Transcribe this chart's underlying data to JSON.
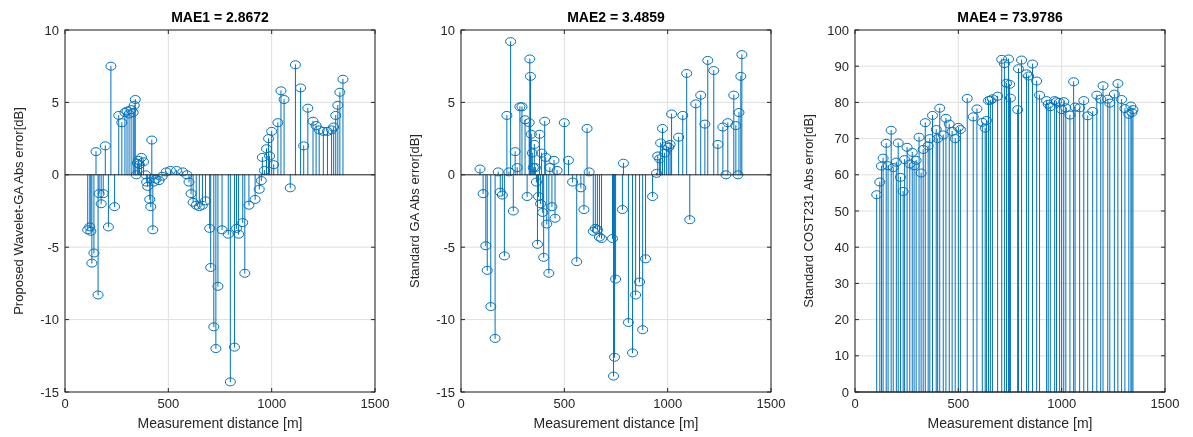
{
  "chart_data": [
    {
      "type": "lollipop",
      "title": "MAE1 = 2.8672",
      "xlabel": "Measurement distance [m]",
      "ylabel": "Proposed Wavelet-GA Abs error[dB]",
      "color": "#0072bd",
      "marker": "circle",
      "grid": true,
      "xlim": [
        0,
        1500
      ],
      "xticks": [
        0,
        500,
        1000,
        1500
      ],
      "ylim": [
        -15,
        10
      ],
      "yticks": [
        -15,
        -10,
        -5,
        0,
        5,
        10
      ],
      "x": [
        110,
        120,
        125,
        130,
        140,
        150,
        160,
        165,
        175,
        185,
        195,
        210,
        222,
        240,
        260,
        275,
        290,
        300,
        310,
        320,
        330,
        335,
        340,
        345,
        350,
        355,
        360,
        370,
        380,
        390,
        395,
        400,
        410,
        415,
        420,
        425,
        430,
        440,
        455,
        470,
        490,
        510,
        540,
        570,
        590,
        600,
        610,
        620,
        635,
        650,
        665,
        680,
        700,
        705,
        720,
        730,
        740,
        760,
        790,
        800,
        820,
        830,
        840,
        860,
        870,
        890,
        920,
        940,
        950,
        955,
        965,
        975,
        985,
        990,
        1000,
        1010,
        1030,
        1045,
        1060,
        1090,
        1115,
        1140,
        1155,
        1175,
        1200,
        1215,
        1230,
        1250,
        1270,
        1290,
        1300,
        1310,
        1320,
        1330,
        1345
      ],
      "values": [
        -3.8,
        -3.6,
        -3.9,
        -6.1,
        -5.4,
        1.6,
        -8.3,
        -1.3,
        -2.0,
        -1.3,
        2.0,
        -3.6,
        7.5,
        -2.2,
        4.1,
        3.6,
        4.3,
        4.4,
        4.2,
        4.5,
        4.3,
        4.8,
        5.2,
        0.0,
        0.8,
        1.0,
        0.7,
        1.2,
        0.9,
        0.0,
        -0.5,
        -0.8,
        -1.7,
        -2.2,
        2.4,
        -3.8,
        -0.5,
        -0.3,
        -0.4,
        -0.1,
        0.2,
        0.3,
        0.3,
        0.2,
        0.0,
        -0.5,
        -1.3,
        -1.9,
        -2.1,
        -2.2,
        -2.1,
        -1.8,
        -3.7,
        -6.4,
        -10.5,
        -12.0,
        -7.7,
        -3.8,
        -4.1,
        -14.3,
        -11.9,
        -3.7,
        -4.1,
        -3.3,
        -6.8,
        -2.1,
        -1.7,
        -1.0,
        -0.4,
        1.2,
        0.3,
        1.8,
        2.5,
        1.3,
        3.0,
        0.7,
        3.6,
        5.8,
        5.2,
        -0.9,
        7.6,
        6.0,
        2.0,
        4.6,
        3.7,
        3.4,
        3.1,
        3.0,
        3.0,
        3.1,
        3.3,
        4.1,
        4.8,
        5.7,
        6.6
      ]
    },
    {
      "type": "lollipop",
      "title": "MAE2 = 3.4859",
      "xlabel": "Measurement distance [m]",
      "ylabel": "Standard GA Abs error[dB]",
      "color": "#0072bd",
      "marker": "circle",
      "grid": true,
      "xlim": [
        0,
        1500
      ],
      "xticks": [
        0,
        500,
        1000,
        1500
      ],
      "ylim": [
        -15,
        10
      ],
      "yticks": [
        -15,
        -10,
        -5,
        0,
        5,
        10
      ],
      "x": [
        92,
        107,
        120,
        127,
        144,
        165,
        180,
        190,
        200,
        210,
        222,
        232,
        240,
        253,
        262,
        272,
        285,
        295,
        310,
        320,
        330,
        333,
        336,
        340,
        345,
        350,
        355,
        360,
        365,
        370,
        375,
        380,
        385,
        390,
        395,
        400,
        405,
        410,
        415,
        425,
        430,
        440,
        450,
        455,
        465,
        500,
        520,
        540,
        560,
        580,
        595,
        610,
        620,
        640,
        650,
        660,
        670,
        680,
        733,
        738,
        743,
        748,
        781,
        786,
        810,
        830,
        845,
        864,
        879,
        893,
        927,
        946,
        952,
        961,
        966,
        975,
        985,
        995,
        1005,
        1012,
        1019,
        1053,
        1073,
        1092,
        1107,
        1136,
        1160,
        1180,
        1194,
        1223,
        1243,
        1267,
        1282,
        1291,
        1320,
        1330,
        1340,
        1345,
        1354,
        1359
      ],
      "values": [
        0.4,
        -1.3,
        -4.9,
        -6.6,
        -9.1,
        -11.3,
        0.2,
        -1.2,
        -1.4,
        -5.6,
        4.1,
        0.2,
        9.2,
        -2.5,
        1.6,
        0.5,
        4.7,
        4.7,
        3.8,
        -1.5,
        3.6,
        8.0,
        6.8,
        2.8,
        1.5,
        0.5,
        2.1,
        0.5,
        -0.5,
        -4.8,
        -1.5,
        2.8,
        -2.0,
        1.5,
        -2.6,
        -5.7,
        3.7,
        1.2,
        -3.4,
        -6.8,
        0.5,
        -2.2,
        1.0,
        -3.0,
        0.3,
        3.6,
        1.0,
        -0.5,
        -6.0,
        -0.9,
        -2.4,
        3.2,
        0.2,
        -3.9,
        -3.7,
        -3.8,
        -4.3,
        -4.4,
        -4.4,
        -13.9,
        -12.6,
        -7.2,
        -2.4,
        0.8,
        -10.2,
        -12.3,
        -8.3,
        -7.4,
        -10.7,
        -5.8,
        -1.5,
        0.1,
        1.3,
        1.1,
        2.2,
        3.2,
        1.5,
        2.0,
        1.9,
        2.1,
        4.2,
        2.6,
        4.1,
        7.0,
        -3.1,
        4.9,
        5.5,
        3.5,
        7.9,
        7.2,
        2.1,
        3.3,
        0.0,
        3.6,
        5.5,
        3.4,
        0.0,
        4.3,
        6.8,
        8.3
      ]
    },
    {
      "type": "lollipop",
      "title": "MAE4 = 73.9786",
      "xlabel": "Measurement distance [m]",
      "ylabel": "Standard COST231 Abs error[dB]",
      "color": "#0072bd",
      "marker": "circle",
      "grid": true,
      "xlim": [
        0,
        1500
      ],
      "xticks": [
        0,
        500,
        1000,
        1500
      ],
      "ylim": [
        0,
        100
      ],
      "yticks": [
        0,
        10,
        20,
        30,
        40,
        50,
        60,
        70,
        80,
        90,
        100
      ],
      "x": [
        105,
        120,
        128,
        136,
        151,
        160,
        175,
        185,
        200,
        209,
        220,
        233,
        240,
        252,
        265,
        277,
        286,
        296,
        310,
        320,
        330,
        340,
        354,
        362,
        375,
        393,
        400,
        410,
        427,
        440,
        456,
        470,
        485,
        500,
        510,
        543,
        572,
        590,
        616,
        630,
        636,
        646,
        655,
        665,
        690,
        710,
        723,
        733,
        743,
        748,
        752,
        787,
        791,
        806,
        830,
        840,
        859,
        879,
        893,
        927,
        935,
        945,
        966,
        975,
        990,
        1000,
        1010,
        1020,
        1040,
        1058,
        1065,
        1087,
        1107,
        1126,
        1150,
        1170,
        1189,
        1200,
        1223,
        1233,
        1255,
        1272,
        1290,
        1306,
        1325,
        1335,
        1340,
        1345
      ],
      "values": [
        54.5,
        58,
        62.4,
        64.6,
        68.7,
        62.5,
        72.3,
        62,
        63.5,
        68.8,
        59.3,
        55.4,
        64.2,
        67.6,
        63,
        66.2,
        62.5,
        64,
        70.4,
        60.5,
        67,
        74.4,
        68,
        70,
        76.4,
        72.5,
        70,
        78.4,
        71,
        75.6,
        74,
        72,
        70,
        73.1,
        72.5,
        81.1,
        76,
        78.2,
        74.5,
        72.9,
        75,
        80.5,
        80.6,
        81,
        81.7,
        91.9,
        90.7,
        85.3,
        92,
        85,
        81.2,
        78,
        89.3,
        91.7,
        87.9,
        87.3,
        90.6,
        85.9,
        82,
        80.5,
        79.5,
        78.8,
        80.5,
        80.2,
        80,
        78,
        80.2,
        78.5,
        76.5,
        85.7,
        78.7,
        78.5,
        80.5,
        76.3,
        77.5,
        82,
        80.9,
        84.6,
        80.9,
        79.8,
        82.3,
        85.2,
        80.8,
        78.3,
        76.7,
        79,
        77.2,
        78
      ]
    }
  ]
}
